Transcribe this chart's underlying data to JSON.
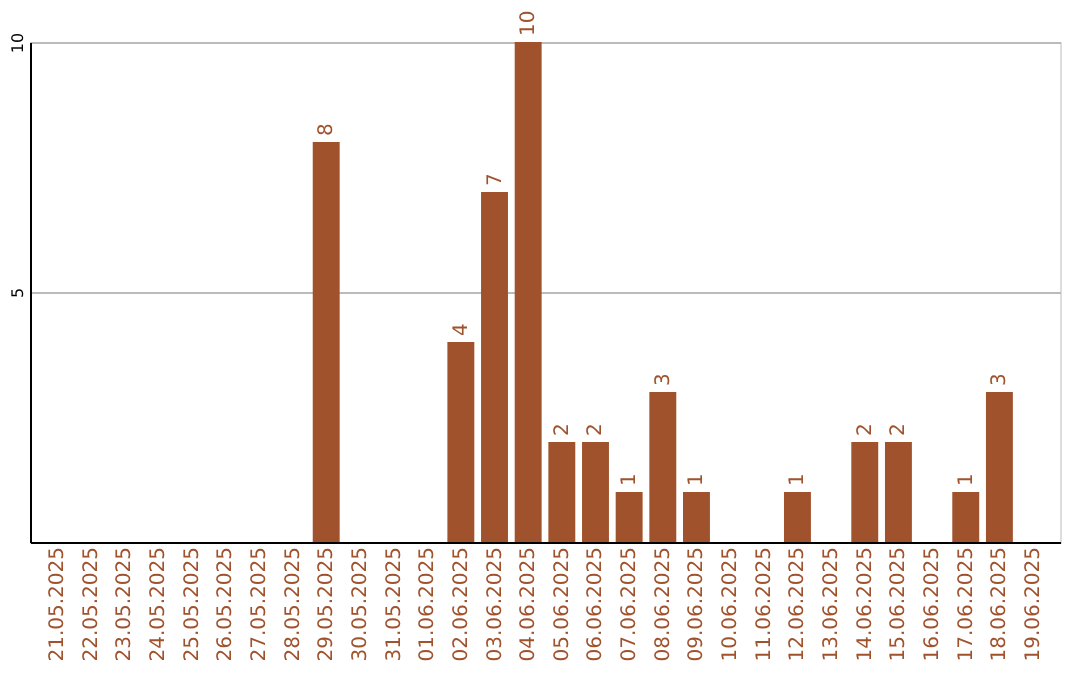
{
  "chart_data": {
    "type": "bar",
    "categories": [
      "21.05.2025",
      "22.05.2025",
      "23.05.2025",
      "24.05.2025",
      "25.05.2025",
      "26.05.2025",
      "27.05.2025",
      "28.05.2025",
      "29.05.2025",
      "30.05.2025",
      "31.05.2025",
      "01.06.2025",
      "02.06.2025",
      "03.06.2025",
      "04.06.2025",
      "05.06.2025",
      "06.06.2025",
      "07.06.2025",
      "08.06.2025",
      "09.06.2025",
      "10.06.2025",
      "11.06.2025",
      "12.06.2025",
      "13.06.2025",
      "14.06.2025",
      "15.06.2025",
      "16.06.2025",
      "17.06.2025",
      "18.06.2025",
      "19.06.2025"
    ],
    "values": [
      0,
      0,
      0,
      0,
      0,
      0,
      0,
      0,
      8,
      0,
      0,
      0,
      4,
      7,
      10,
      2,
      2,
      1,
      3,
      1,
      0,
      0,
      1,
      0,
      2,
      2,
      0,
      1,
      3,
      0
    ],
    "value_labels": [
      null,
      null,
      null,
      null,
      null,
      null,
      null,
      null,
      "8",
      null,
      null,
      null,
      "4",
      "7",
      "10",
      "2",
      "2",
      "1",
      "3",
      "1",
      null,
      null,
      "1",
      null,
      "2",
      "2",
      null,
      "1",
      "3",
      null
    ],
    "color": "#a0522d",
    "ylim": [
      0,
      10
    ],
    "yticks": [
      5,
      10
    ],
    "grid": "y"
  }
}
